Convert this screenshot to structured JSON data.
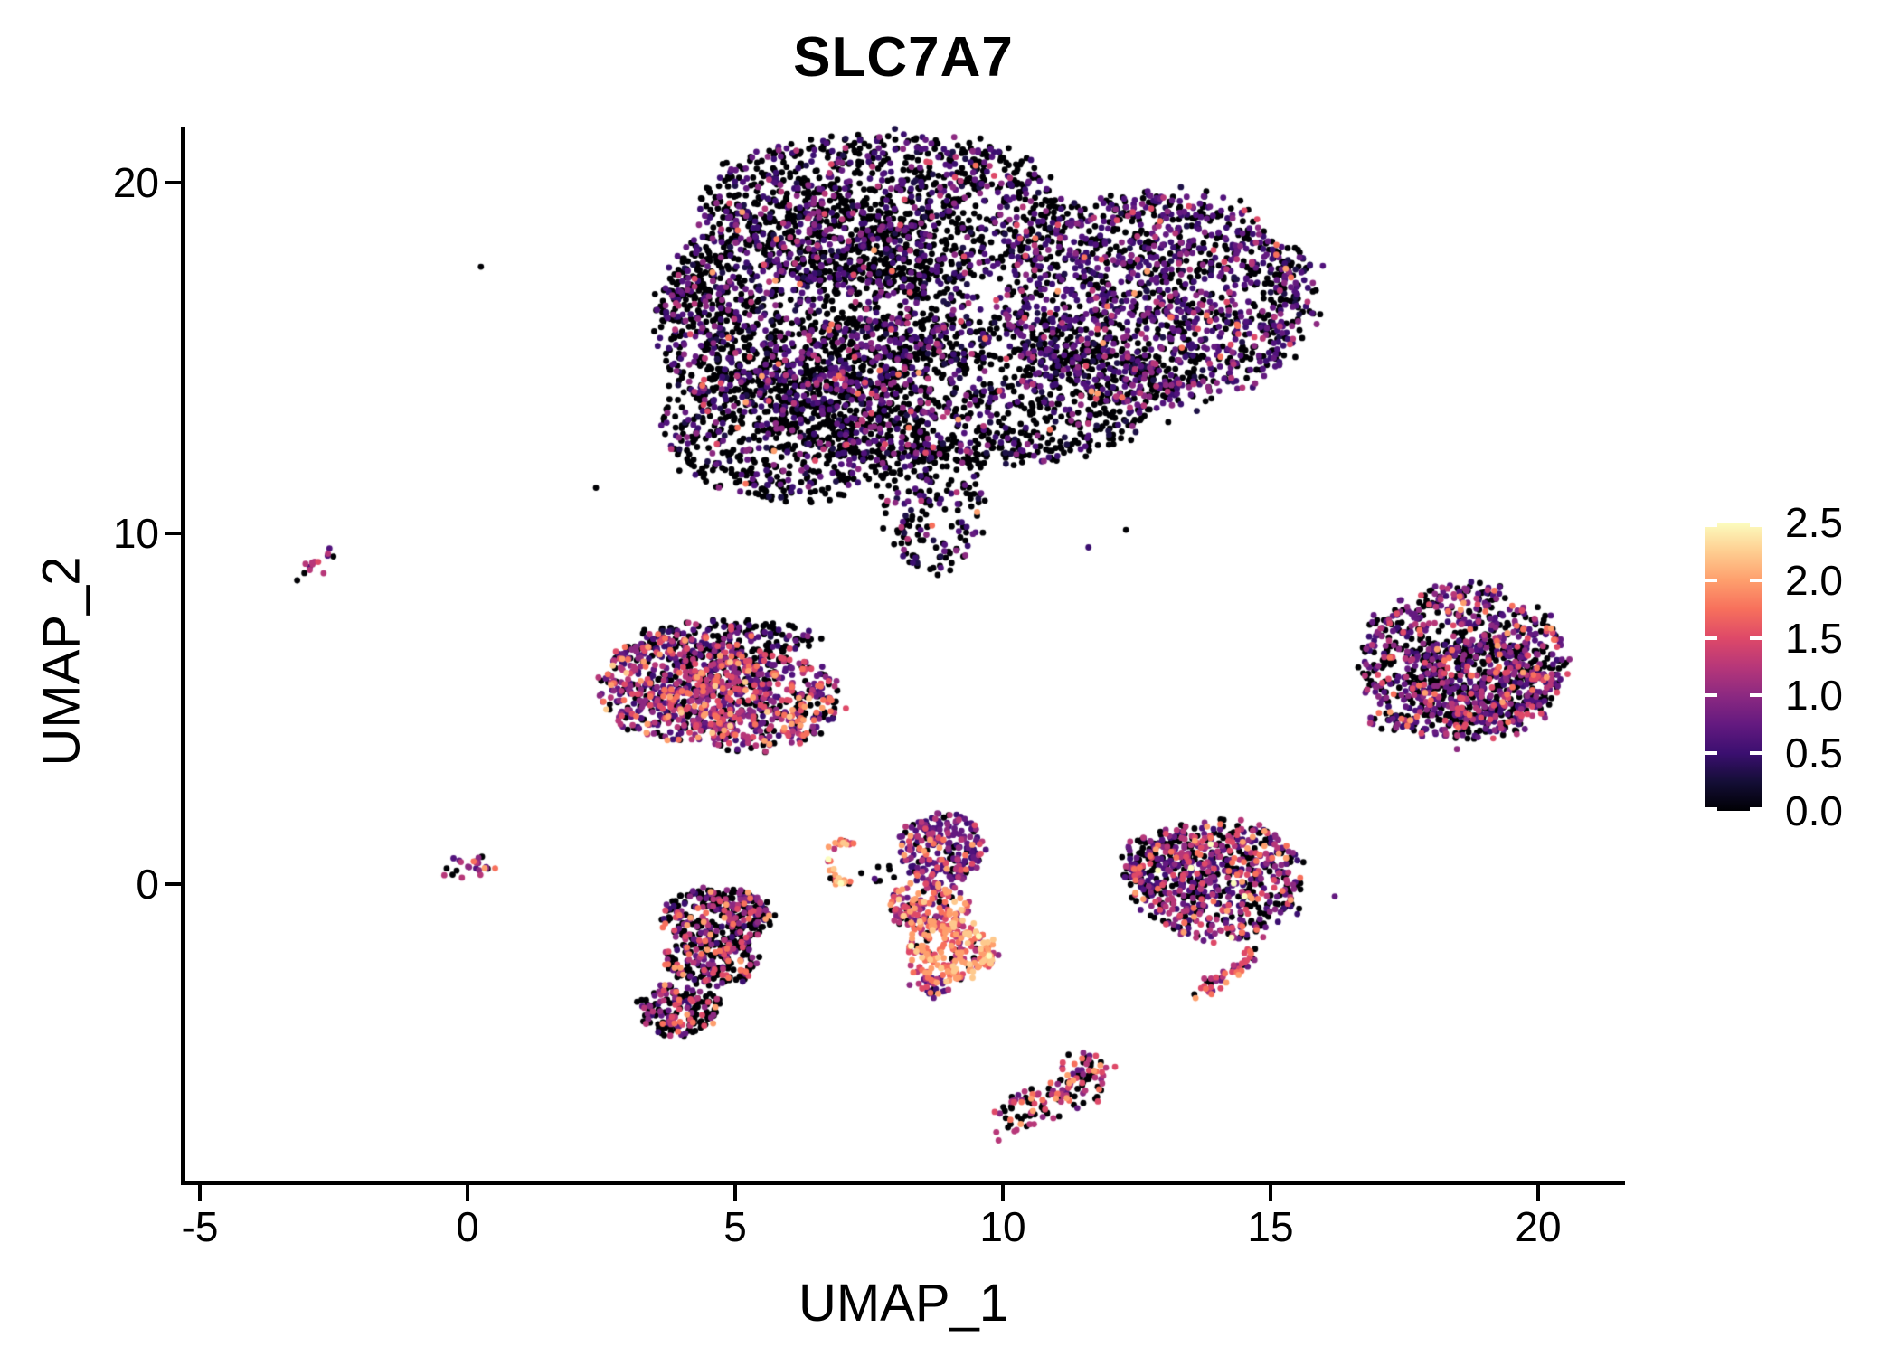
{
  "chart_data": {
    "type": "scatter",
    "title": "SLC7A7",
    "xlabel": "UMAP_1",
    "ylabel": "UMAP_2",
    "xlim": [
      -5.3,
      21.6
    ],
    "ylim": [
      -8.5,
      21.6
    ],
    "x_ticks": [
      -5,
      0,
      5,
      10,
      15,
      20
    ],
    "y_ticks": [
      0,
      10,
      20
    ],
    "grid": false,
    "background": "#ffffff",
    "axis_color": "#000000",
    "point_radius": 3.4,
    "legend": {
      "position": "right",
      "min": 0.0,
      "max": 2.5,
      "tick_values": [
        0.0,
        0.5,
        1.0,
        1.5,
        2.0,
        2.5
      ],
      "tick_labels": [
        "0.0",
        "0.5",
        "1.0",
        "1.5",
        "2.0",
        "2.5"
      ],
      "colormap": "magma",
      "gradient": [
        {
          "pos": 0.0,
          "color": "#000004"
        },
        {
          "pos": 0.1,
          "color": "#140e36"
        },
        {
          "pos": 0.2,
          "color": "#3b0f70"
        },
        {
          "pos": 0.3,
          "color": "#641a80"
        },
        {
          "pos": 0.4,
          "color": "#8c2981"
        },
        {
          "pos": 0.5,
          "color": "#b73779"
        },
        {
          "pos": 0.6,
          "color": "#de4968"
        },
        {
          "pos": 0.7,
          "color": "#f7705c"
        },
        {
          "pos": 0.8,
          "color": "#fe9f6d"
        },
        {
          "pos": 0.9,
          "color": "#fece91"
        },
        {
          "pos": 1.0,
          "color": "#fcfdbf"
        }
      ]
    },
    "palette": [
      "#000004",
      "#1d1147",
      "#3b0f70",
      "#51127c",
      "#641a80",
      "#7b2382",
      "#8c2981",
      "#a3307e",
      "#b73779",
      "#ca3e72",
      "#de4968",
      "#ed5a5f",
      "#f7705c",
      "#fe9f6d",
      "#fec98d",
      "#fcfdbf"
    ],
    "weight_sets": {
      "big_main": [
        [
          0,
          0.66
        ],
        [
          1,
          0.05
        ],
        [
          2,
          0.09
        ],
        [
          3,
          0.07
        ],
        [
          4,
          0.05
        ],
        [
          6,
          0.045
        ],
        [
          8,
          0.02
        ],
        [
          10,
          0.009
        ],
        [
          12,
          0.004
        ],
        [
          13,
          0.002
        ]
      ],
      "big_right": [
        [
          0,
          0.47
        ],
        [
          1,
          0.04
        ],
        [
          2,
          0.13
        ],
        [
          3,
          0.12
        ],
        [
          4,
          0.1
        ],
        [
          6,
          0.07
        ],
        [
          8,
          0.035
        ],
        [
          10,
          0.02
        ],
        [
          12,
          0.008
        ],
        [
          13,
          0.004
        ]
      ],
      "mono": [
        [
          0,
          0.25
        ],
        [
          2,
          0.07
        ],
        [
          3,
          0.08
        ],
        [
          4,
          0.1
        ],
        [
          5,
          0.005
        ],
        [
          6,
          0.13
        ],
        [
          8,
          0.13
        ],
        [
          10,
          0.11
        ],
        [
          12,
          0.07
        ],
        [
          13,
          0.04
        ],
        [
          14,
          0.015
        ]
      ],
      "right_blob": [
        [
          0,
          0.43
        ],
        [
          2,
          0.09
        ],
        [
          3,
          0.1
        ],
        [
          4,
          0.1
        ],
        [
          6,
          0.1
        ],
        [
          8,
          0.08
        ],
        [
          10,
          0.06
        ],
        [
          12,
          0.025
        ],
        [
          13,
          0.013
        ],
        [
          15,
          0.002
        ]
      ],
      "right_mid": [
        [
          0,
          0.4
        ],
        [
          2,
          0.08
        ],
        [
          3,
          0.09
        ],
        [
          4,
          0.1
        ],
        [
          6,
          0.1
        ],
        [
          8,
          0.1
        ],
        [
          10,
          0.07
        ],
        [
          12,
          0.035
        ],
        [
          13,
          0.02
        ],
        [
          15,
          0.005
        ]
      ],
      "tail_w": [
        [
          0,
          0.22
        ],
        [
          4,
          0.1
        ],
        [
          6,
          0.14
        ],
        [
          8,
          0.18
        ],
        [
          10,
          0.16
        ],
        [
          12,
          0.1
        ],
        [
          13,
          0.1
        ]
      ],
      "central_top": [
        [
          0,
          0.16
        ],
        [
          2,
          0.15
        ],
        [
          3,
          0.15
        ],
        [
          4,
          0.16
        ],
        [
          6,
          0.13
        ],
        [
          8,
          0.1
        ],
        [
          10,
          0.07
        ],
        [
          12,
          0.05
        ],
        [
          13,
          0.03
        ]
      ],
      "central_mid": [
        [
          0,
          0.12
        ],
        [
          2,
          0.04
        ],
        [
          4,
          0.08
        ],
        [
          6,
          0.1
        ],
        [
          8,
          0.14
        ],
        [
          10,
          0.17
        ],
        [
          12,
          0.17
        ],
        [
          13,
          0.14
        ],
        [
          14,
          0.04
        ]
      ],
      "central_bot": [
        [
          0,
          0.07
        ],
        [
          6,
          0.06
        ],
        [
          8,
          0.09
        ],
        [
          10,
          0.15
        ],
        [
          12,
          0.21
        ],
        [
          13,
          0.26
        ],
        [
          14,
          0.11
        ],
        [
          15,
          0.05
        ]
      ],
      "below_left": [
        [
          0,
          0.54
        ],
        [
          2,
          0.05
        ],
        [
          4,
          0.08
        ],
        [
          6,
          0.1
        ],
        [
          8,
          0.09
        ],
        [
          10,
          0.07
        ],
        [
          12,
          0.04
        ],
        [
          13,
          0.03
        ]
      ],
      "bottom_w": [
        [
          0,
          0.44
        ],
        [
          4,
          0.06
        ],
        [
          6,
          0.1
        ],
        [
          8,
          0.14
        ],
        [
          10,
          0.12
        ],
        [
          12,
          0.07
        ],
        [
          13,
          0.07
        ]
      ],
      "crescent_w": [
        [
          0,
          0.16
        ],
        [
          8,
          0.08
        ],
        [
          10,
          0.14
        ],
        [
          12,
          0.18
        ],
        [
          13,
          0.24
        ],
        [
          14,
          0.13
        ],
        [
          15,
          0.07
        ]
      ],
      "origin_w": [
        [
          0,
          0.18
        ],
        [
          3,
          0.1
        ],
        [
          4,
          0.14
        ],
        [
          6,
          0.15
        ],
        [
          8,
          0.12
        ],
        [
          10,
          0.09
        ],
        [
          12,
          0.09
        ],
        [
          13,
          0.13
        ]
      ],
      "left_streak_w": [
        [
          0,
          0.28
        ],
        [
          3,
          0.2
        ],
        [
          4,
          0.15
        ],
        [
          8,
          0.15
        ],
        [
          10,
          0.22
        ]
      ],
      "stray_w": [
        [
          0,
          0.7
        ],
        [
          3,
          0.15
        ],
        [
          6,
          0.15
        ]
      ]
    },
    "clusters": [
      {
        "name": "large-top-cluster",
        "blobs": [
          {
            "c": [
              7.8,
              19.2
            ],
            "r": [
              3.4,
              2.2
            ],
            "n": 1150,
            "w": "big_main"
          },
          {
            "c": [
              12.9,
              16.7
            ],
            "r": [
              2.9,
              3.0
            ],
            "n": 1500,
            "w": "big_right"
          },
          {
            "c": [
              6.5,
              16.7
            ],
            "r": [
              2.8,
              2.85
            ],
            "n": 1100,
            "w": "big_main"
          },
          {
            "c": [
              9.2,
              14.1
            ],
            "r": [
              3.9,
              2.2
            ],
            "n": 1300,
            "w": "big_main"
          },
          {
            "c": [
              6.1,
              12.9
            ],
            "r": [
              2.45,
              1.95
            ],
            "n": 700,
            "w": "big_main"
          },
          {
            "c": [
              8.7,
              10.9
            ],
            "r": [
              0.95,
              1.95
            ],
            "n": 190,
            "w": "big_main"
          },
          {
            "c": [
              4.4,
              15.9
            ],
            "r": [
              0.95,
              2.2
            ],
            "n": 230,
            "w": "big_main"
          }
        ]
      },
      {
        "name": "mid-left-cluster",
        "blobs": [
          {
            "c": [
              4.0,
              5.6
            ],
            "r": [
              1.55,
              1.5
            ],
            "n": 560,
            "w": "mono"
          },
          {
            "c": [
              5.4,
              5.2
            ],
            "r": [
              1.6,
              1.4
            ],
            "n": 500,
            "w": "mono"
          },
          {
            "c": [
              4.8,
              7.0
            ],
            "r": [
              1.7,
              0.55
            ],
            "n": 180,
            "w": "big_main"
          }
        ]
      },
      {
        "name": "right-round-cluster",
        "blobs": [
          {
            "c": [
              18.6,
              6.3
            ],
            "r": [
              1.9,
              2.2
            ],
            "n": 900,
            "w": "right_blob"
          },
          {
            "c": [
              18.9,
              5.6
            ],
            "r": [
              1.3,
              1.3
            ],
            "n": 260,
            "w": "right_blob"
          },
          {
            "c": [
              17.2,
              4.6
            ],
            "r": [
              0.5,
              0.35
            ],
            "n": 25,
            "w": "big_main"
          }
        ]
      },
      {
        "name": "right-middle-cluster",
        "blobs": [
          {
            "c": [
              14.0,
              0.1
            ],
            "r": [
              1.6,
              1.7
            ],
            "n": 620,
            "w": "right_mid"
          },
          {
            "c": [
              13.1,
              0.6
            ],
            "r": [
              0.9,
              0.9
            ],
            "n": 150,
            "w": "right_mid"
          }
        ]
      },
      {
        "name": "central-column-cluster",
        "blobs": [
          {
            "c": [
              8.85,
              1.0
            ],
            "r": [
              0.8,
              1.05
            ],
            "n": 230,
            "w": "central_top"
          },
          {
            "c": [
              8.6,
              -0.6
            ],
            "r": [
              0.75,
              0.7
            ],
            "n": 140,
            "w": "central_mid"
          },
          {
            "c": [
              9.0,
              -1.9
            ],
            "r": [
              0.85,
              0.9
            ],
            "n": 230,
            "w": "central_bot"
          },
          {
            "c": [
              8.6,
              -2.95
            ],
            "r": [
              0.4,
              0.3
            ],
            "n": 25,
            "w": "central_top"
          }
        ]
      },
      {
        "name": "below-left-cluster",
        "blobs": [
          {
            "c": [
              4.65,
              -0.9
            ],
            "r": [
              1.05,
              0.8
            ],
            "n": 290,
            "w": "below_left"
          },
          {
            "c": [
              4.55,
              -2.2
            ],
            "r": [
              0.9,
              0.7
            ],
            "n": 200,
            "w": "below_left"
          },
          {
            "c": [
              3.95,
              -3.6
            ],
            "r": [
              0.78,
              0.72
            ],
            "n": 170,
            "w": "below_left"
          }
        ]
      },
      {
        "name": "crescent-side-dots",
        "blobs": [
          {
            "c": [
              7.75,
              0.35
            ],
            "r": [
              0.38,
              0.28
            ],
            "n": 8,
            "w": "stray_w"
          }
        ]
      }
    ],
    "paths": [
      {
        "name": "right-middle-tail",
        "pts": [
          [
            14.68,
            -1.7
          ],
          [
            14.35,
            -2.5
          ],
          [
            13.6,
            -3.1
          ]
        ],
        "n": 48,
        "jitter": [
          0.1,
          0.13
        ],
        "w": "tail_w"
      },
      {
        "name": "bottom-streak",
        "pts": [
          [
            10.0,
            -6.85
          ],
          [
            10.75,
            -6.25
          ],
          [
            11.45,
            -5.6
          ],
          [
            11.75,
            -5.3
          ]
        ],
        "n": 145,
        "jitter": [
          0.22,
          0.3
        ],
        "w": "bottom_w"
      },
      {
        "name": "origin-streak",
        "pts": [
          [
            -0.35,
            0.3
          ],
          [
            0.05,
            0.6
          ],
          [
            0.45,
            0.45
          ]
        ],
        "n": 24,
        "jitter": [
          0.12,
          0.14
        ],
        "w": "origin_w"
      },
      {
        "name": "left-streak",
        "pts": [
          [
            -3.2,
            8.75
          ],
          [
            -2.85,
            9.15
          ],
          [
            -2.5,
            9.55
          ]
        ],
        "n": 14,
        "jitter": [
          0.07,
          0.1
        ],
        "w": "left_streak_w"
      }
    ],
    "arcs": [
      {
        "name": "crescent-cluster",
        "c": [
          7.05,
          0.6
        ],
        "r": [
          0.27,
          0.58
        ],
        "a0": 60,
        "a1": 300,
        "n": 42,
        "jitter": [
          0.05,
          0.06
        ],
        "w": "crescent_w"
      }
    ],
    "strays": [
      {
        "p": [
          0.25,
          17.6
        ],
        "ci": 0
      },
      {
        "p": [
          2.4,
          11.3
        ],
        "ci": 0
      },
      {
        "p": [
          12.3,
          10.1
        ],
        "ci": 0
      },
      {
        "p": [
          11.6,
          9.6
        ],
        "ci": 2
      },
      {
        "p": [
          16.2,
          -0.35
        ],
        "ci": 4
      }
    ]
  }
}
